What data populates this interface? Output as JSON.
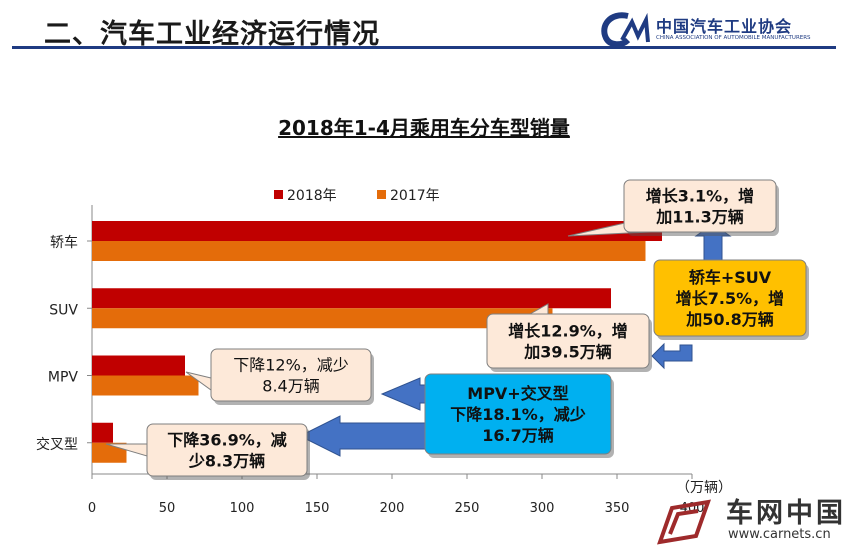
{
  "slide": {
    "title": "二、汽车工业经济运行情况",
    "logo_cn": "中国汽车工业协会",
    "logo_en": "CHINA ASSOCIATION OF AUTOMOBILE MANUFACTURERS"
  },
  "watermark": {
    "cn": "车网中国",
    "url": "www.carnets.cn"
  },
  "chart_data": {
    "type": "bar",
    "orientation": "horizontal",
    "title": "2018年1-4月乘用车分车型销量",
    "categories": [
      "轿车",
      "SUV",
      "MPV",
      "交叉型"
    ],
    "series": [
      {
        "name": "2018年",
        "color": "#c00000",
        "values": [
          380,
          346,
          62,
          14
        ]
      },
      {
        "name": "2017年",
        "color": "#e46c0a",
        "values": [
          369,
          307,
          71,
          23
        ]
      }
    ],
    "xlim": [
      0,
      400
    ],
    "xticks": [
      "0",
      "50",
      "100",
      "150",
      "200",
      "250",
      "300",
      "350",
      "400"
    ],
    "unit_label": "（万辆）",
    "legend_position": "top",
    "grid": false,
    "annotations": [
      {
        "lines": [
          "增长3.1%，增",
          "加11.3万辆"
        ],
        "fill": "#fde9d9"
      },
      {
        "lines": [
          "增长12.9%，增",
          "加39.5万辆"
        ],
        "fill": "#fde9d9"
      },
      {
        "lines": [
          "下降12%，减少",
          "8.4万辆"
        ],
        "fill": "#fde9d9"
      },
      {
        "lines": [
          "下降36.9%，减",
          "少8.3万辆"
        ],
        "fill": "#fde9d9"
      },
      {
        "lines": [
          "轿车+SUV",
          "增长7.5%，增",
          "加50.8万辆"
        ],
        "fill": "#ffc000"
      },
      {
        "lines": [
          "MPV+交叉型",
          "下降18.1%，减少",
          "16.7万辆"
        ],
        "fill": "#00b0f0"
      }
    ]
  }
}
